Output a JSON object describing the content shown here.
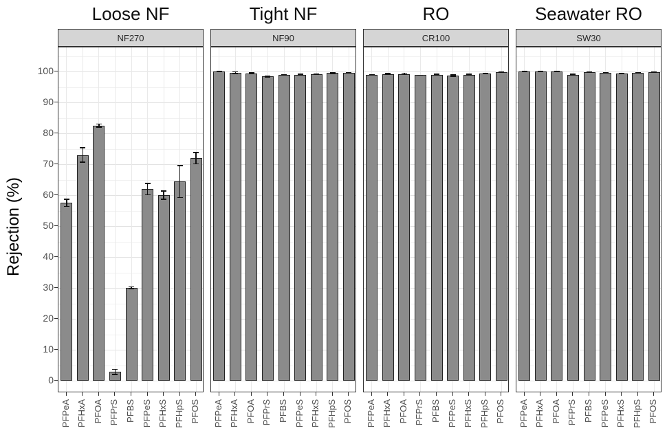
{
  "chart_data": {
    "type": "bar",
    "title": "",
    "xlabel": "",
    "ylabel": "Rejection (%)",
    "ylim": [
      0,
      100
    ],
    "y_ticks": [
      0,
      10,
      20,
      30,
      40,
      50,
      60,
      70,
      80,
      90,
      100
    ],
    "grid": true,
    "legend": null,
    "bar_fill": "#8b8b8b",
    "bar_border": "#222222",
    "error_bar_color": "#111111",
    "categories": [
      "PFPeA",
      "PFHxA",
      "PFOA",
      "PFPrS",
      "PFBS",
      "PFPeS",
      "PFHxS",
      "PFHpS",
      "PFOS"
    ],
    "facets": [
      {
        "title": "Loose NF",
        "membrane": "NF270",
        "values": [
          57.5,
          73,
          82.5,
          2.8,
          30,
          62,
          60,
          64.4,
          72
        ],
        "errors": [
          1.3,
          2.5,
          0.7,
          1.0,
          0.5,
          2.0,
          1.5,
          5.3,
          2.0
        ]
      },
      {
        "title": "Tight NF",
        "membrane": "NF90",
        "values": [
          100,
          99.6,
          99.4,
          98.4,
          98.9,
          99.0,
          99.2,
          99.5,
          99.6
        ],
        "errors": [
          0.1,
          0.5,
          0.3,
          0.3,
          0.1,
          0.1,
          0.1,
          0.3,
          0.1
        ]
      },
      {
        "title": "RO",
        "membrane": "CR100",
        "values": [
          99.0,
          99.2,
          99.2,
          98.8,
          99.0,
          98.7,
          99.0,
          99.3,
          99.7
        ],
        "errors": [
          0.2,
          0.3,
          0.4,
          0.2,
          0.3,
          0.4,
          0.1,
          0.1,
          0.1
        ]
      },
      {
        "title": "Seawater RO",
        "membrane": "SW30",
        "values": [
          100,
          100,
          100,
          99.0,
          99.7,
          99.5,
          99.4,
          99.6,
          99.8
        ],
        "errors": [
          0.1,
          0.1,
          0.1,
          0.1,
          0.1,
          0.1,
          0.1,
          0.1,
          0.1
        ]
      }
    ]
  },
  "colors": {
    "strip_bg": "#d5d5d5",
    "panel_border": "#333333",
    "axis_text": "#4d4d4d",
    "grid_major": "#e2e2e2",
    "grid_minor": "#f1f1f1"
  }
}
